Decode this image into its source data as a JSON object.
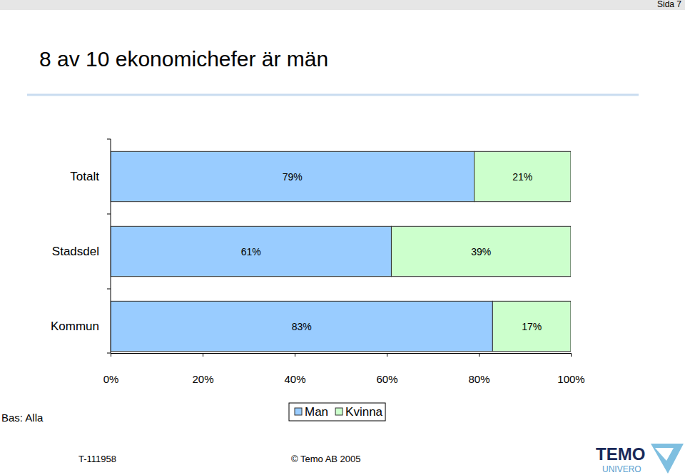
{
  "chart_data": {
    "type": "bar",
    "orientation": "horizontal",
    "stacked": true,
    "data_labels": true,
    "grid": false,
    "title": "8 av 10 ekonomichefer är män",
    "annotations": [
      "Sida 7",
      "Bas: Alla",
      "T-111958",
      "© Temo AB 2005",
      "TEMO",
      "UNIVERO"
    ],
    "categories": [
      "Totalt",
      "Stadsdel",
      "Kommun"
    ],
    "series": [
      {
        "name": "Man",
        "color": "#99ccff",
        "values": [
          79,
          61,
          83
        ],
        "value_labels": [
          "79%",
          "61%",
          "83%"
        ]
      },
      {
        "name": "Kvinna",
        "color": "#ccffcc",
        "values": [
          21,
          39,
          17
        ],
        "value_labels": [
          "21%",
          "39%",
          "17%"
        ]
      }
    ],
    "xlim": [
      0,
      100
    ],
    "xticks": [
      {
        "value": 0,
        "label": "0%"
      },
      {
        "value": 20,
        "label": "20%"
      },
      {
        "value": 40,
        "label": "40%"
      },
      {
        "value": 60,
        "label": "60%"
      },
      {
        "value": 80,
        "label": "80%"
      },
      {
        "value": 100,
        "label": "100%"
      }
    ]
  }
}
